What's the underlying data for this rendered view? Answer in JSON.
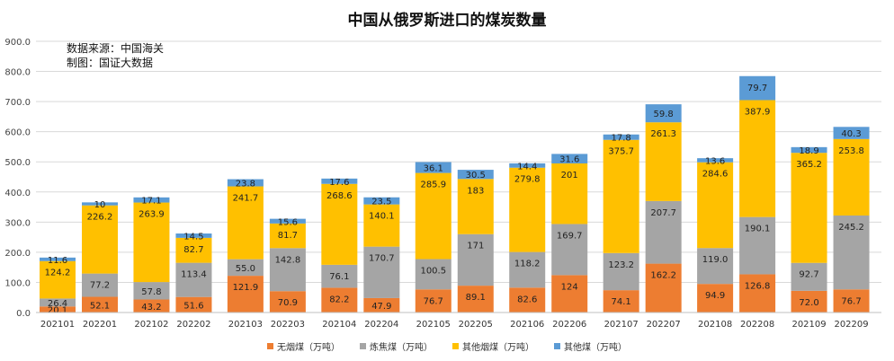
{
  "chart_data": {
    "type": "bar",
    "stacked": true,
    "title": "中国从俄罗斯进口的煤炭数量",
    "source_lines": [
      "数据来源：中国海关",
      "制图：国证大数据"
    ],
    "ylim": [
      0,
      900
    ],
    "yticks": [
      "0.0",
      "100.0",
      "200.0",
      "300.0",
      "400.0",
      "500.0",
      "600.0",
      "700.0",
      "800.0",
      "900.0"
    ],
    "grid": true,
    "legend_position": "bottom",
    "categories": [
      "202101",
      "202201",
      "202102",
      "202202",
      "202103",
      "202203",
      "202104",
      "202204",
      "202105",
      "202205",
      "202106",
      "202206",
      "202107",
      "202207",
      "202108",
      "202208",
      "202109",
      "202209"
    ],
    "series": [
      {
        "name": "无烟煤（万吨）",
        "color": "#ED7D31",
        "values": [
          20.1,
          52.1,
          43.2,
          51.6,
          121.9,
          70.9,
          82.2,
          47.9,
          76.7,
          89.1,
          82.6,
          124,
          74.1,
          162.2,
          94.9,
          126.8,
          72.0,
          76.7
        ],
        "labels": [
          "20.1",
          "52.1",
          "43.2",
          "51.6",
          "121.9",
          "70.9",
          "82.2",
          "47.9",
          "76.7",
          "89.1",
          "82.6",
          "124",
          "74.1",
          "162.2",
          "94.9",
          "126.8",
          "72.0",
          "76.7"
        ]
      },
      {
        "name": "炼焦煤（万吨）",
        "color": "#A5A5A5",
        "values": [
          26.4,
          77.2,
          57.8,
          113.4,
          55.0,
          142.8,
          76.1,
          170.7,
          100.5,
          171,
          118.2,
          169.7,
          123.2,
          207.7,
          119.0,
          190.1,
          92.7,
          245.2
        ],
        "labels": [
          "26.4",
          "77.2",
          "57.8",
          "113.4",
          "55.0",
          "142.8",
          "76.1",
          "170.7",
          "100.5",
          "171",
          "118.2",
          "169.7",
          "123.2",
          "207.7",
          "119.0",
          "190.1",
          "92.7",
          "245.2"
        ]
      },
      {
        "name": "其他烟煤（万吨）",
        "color": "#FFC000",
        "values": [
          124.2,
          226.2,
          263.9,
          82.7,
          241.7,
          81.7,
          268.6,
          140.1,
          285.9,
          183,
          279.8,
          201,
          375.7,
          261.3,
          284.6,
          387.9,
          365.2,
          253.8
        ],
        "labels": [
          "124.2",
          "226.2",
          "263.9",
          "82.7",
          "241.7",
          "81.7",
          "268.6",
          "140.1",
          "285.9",
          "183",
          "279.8",
          "201",
          "375.7",
          "261.3",
          "284.6",
          "387.9",
          "365.2",
          "253.8"
        ]
      },
      {
        "name": "其他煤（万吨）",
        "color": "#5B9BD5",
        "values": [
          11.6,
          10,
          17.1,
          14.5,
          23.8,
          15.6,
          17.6,
          23.5,
          36.1,
          30.5,
          14.4,
          31.6,
          17.8,
          59.8,
          13.6,
          79.7,
          18.9,
          40.3
        ],
        "labels": [
          "11.6",
          "10",
          "17.1",
          "14.5",
          "23.8",
          "15.6",
          "17.6",
          "23.5",
          "36.1",
          "30.5",
          "14.4",
          "31.6",
          "17.8",
          "59.8",
          "13.6",
          "79.7",
          "18.9",
          "40.3"
        ]
      }
    ]
  }
}
